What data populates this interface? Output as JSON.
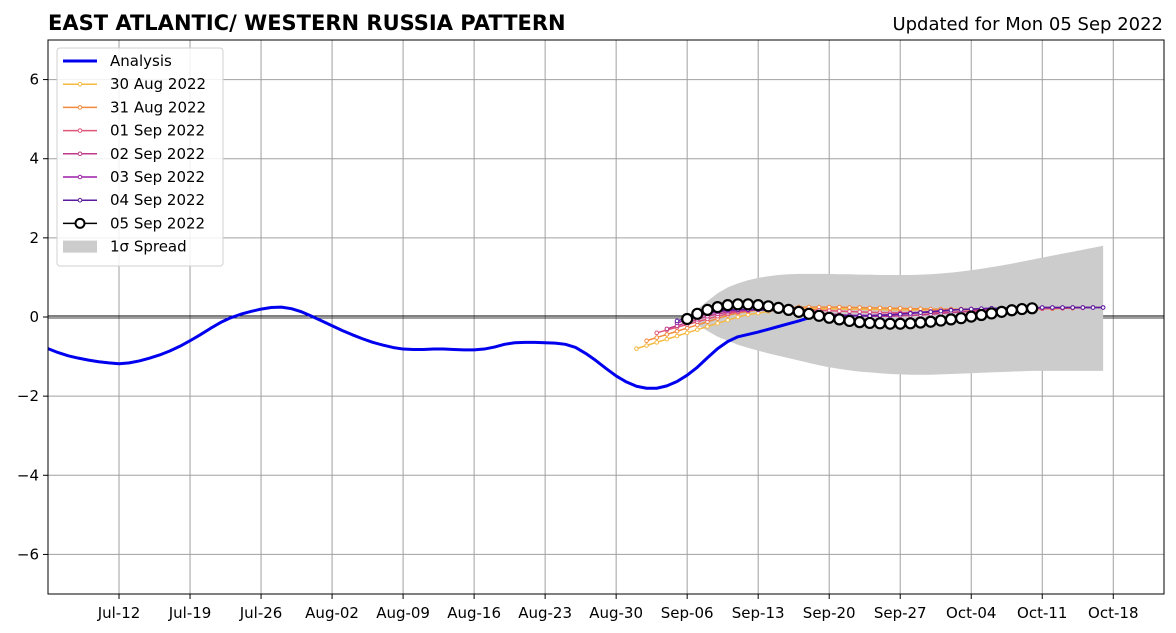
{
  "header": {
    "title": "EAST ATLANTIC/ WESTERN RUSSIA PATTERN",
    "updated": "Updated for Mon 05 Sep 2022"
  },
  "chart_data": {
    "type": "line",
    "title": "EAST ATLANTIC/ WESTERN RUSSIA PATTERN",
    "subtitle": "Updated for Mon 05 Sep 2022",
    "xlabel": "",
    "ylabel": "",
    "x_unit": "day of year 2022",
    "xlim": [
      "2022-07-05",
      "2022-10-23"
    ],
    "ylim": [
      -7,
      7
    ],
    "x_ticks": [
      {
        "date": "2022-07-12",
        "label": "Jul-12"
      },
      {
        "date": "2022-07-19",
        "label": "Jul-19"
      },
      {
        "date": "2022-07-26",
        "label": "Jul-26"
      },
      {
        "date": "2022-08-02",
        "label": "Aug-02"
      },
      {
        "date": "2022-08-09",
        "label": "Aug-09"
      },
      {
        "date": "2022-08-16",
        "label": "Aug-16"
      },
      {
        "date": "2022-08-23",
        "label": "Aug-23"
      },
      {
        "date": "2022-08-30",
        "label": "Aug-30"
      },
      {
        "date": "2022-09-06",
        "label": "Sep-06"
      },
      {
        "date": "2022-09-13",
        "label": "Sep-13"
      },
      {
        "date": "2022-09-20",
        "label": "Sep-20"
      },
      {
        "date": "2022-09-27",
        "label": "Sep-27"
      },
      {
        "date": "2022-10-04",
        "label": "Oct-04"
      },
      {
        "date": "2022-10-11",
        "label": "Oct-11"
      },
      {
        "date": "2022-10-18",
        "label": "Oct-18"
      }
    ],
    "y_ticks": [
      {
        "value": -6,
        "label": "−6"
      },
      {
        "value": -4,
        "label": "−4"
      },
      {
        "value": -2,
        "label": "−2"
      },
      {
        "value": 0,
        "label": "0"
      },
      {
        "value": 2,
        "label": "2"
      },
      {
        "value": 4,
        "label": "4"
      },
      {
        "value": 6,
        "label": "6"
      }
    ],
    "grid": true,
    "zero_line": true,
    "legend_position": "top-left",
    "analysis": {
      "name": "Analysis",
      "color": "#0000ee",
      "start_date": "2022-07-05",
      "step_days": 1,
      "values": [
        -0.8,
        -0.9,
        -0.98,
        -1.04,
        -1.09,
        -1.13,
        -1.16,
        -1.18,
        -1.16,
        -1.11,
        -1.04,
        -0.96,
        -0.86,
        -0.74,
        -0.6,
        -0.45,
        -0.29,
        -0.14,
        -0.02,
        0.07,
        0.14,
        0.2,
        0.24,
        0.25,
        0.21,
        0.13,
        0.02,
        -0.1,
        -0.22,
        -0.34,
        -0.45,
        -0.55,
        -0.64,
        -0.71,
        -0.77,
        -0.81,
        -0.82,
        -0.82,
        -0.81,
        -0.81,
        -0.82,
        -0.83,
        -0.83,
        -0.81,
        -0.76,
        -0.69,
        -0.65,
        -0.64,
        -0.64,
        -0.65,
        -0.66,
        -0.69,
        -0.77,
        -0.92,
        -1.1,
        -1.3,
        -1.49,
        -1.64,
        -1.75,
        -1.8,
        -1.8,
        -1.74,
        -1.63,
        -1.47,
        -1.27,
        -1.03,
        -0.8,
        -0.62,
        -0.5,
        -0.44,
        -0.38,
        -0.31,
        -0.24,
        -0.17,
        -0.1,
        -0.02,
        0.05
      ]
    },
    "spread": {
      "name": "1σ Spread",
      "color": "#cccccc",
      "start_date": "2022-09-06",
      "step_days": 1,
      "upper": [
        0.0,
        0.2,
        0.4,
        0.6,
        0.75,
        0.85,
        0.93,
        0.99,
        1.03,
        1.06,
        1.08,
        1.09,
        1.09,
        1.09,
        1.09,
        1.08,
        1.08,
        1.07,
        1.07,
        1.06,
        1.06,
        1.06,
        1.06,
        1.07,
        1.08,
        1.1,
        1.12,
        1.15,
        1.18,
        1.22,
        1.26,
        1.3,
        1.35,
        1.4,
        1.45,
        1.5,
        1.55,
        1.6,
        1.65,
        1.7,
        1.75,
        1.8
      ],
      "lower": [
        0.0,
        -0.2,
        -0.35,
        -0.5,
        -0.6,
        -0.7,
        -0.78,
        -0.85,
        -0.92,
        -0.98,
        -1.04,
        -1.1,
        -1.16,
        -1.22,
        -1.27,
        -1.31,
        -1.35,
        -1.38,
        -1.4,
        -1.42,
        -1.44,
        -1.45,
        -1.46,
        -1.46,
        -1.46,
        -1.45,
        -1.44,
        -1.43,
        -1.42,
        -1.41,
        -1.4,
        -1.39,
        -1.38,
        -1.37,
        -1.36,
        -1.36,
        -1.36,
        -1.36,
        -1.36,
        -1.36,
        -1.36,
        -1.36
      ]
    },
    "forecasts": [
      {
        "name": "30 Aug 2022",
        "color": "#f5b942",
        "start_date": "2022-09-01",
        "step_days": 1,
        "marker": "small",
        "values": [
          -0.8,
          -0.72,
          -0.64,
          -0.56,
          -0.48,
          -0.4,
          -0.32,
          -0.24,
          -0.16,
          -0.08,
          0.0,
          0.06,
          0.1,
          0.14,
          0.17,
          0.19,
          0.2,
          0.21,
          0.21,
          0.21,
          0.21,
          0.2,
          0.2,
          0.19,
          0.19,
          0.18,
          0.18,
          0.18,
          0.18,
          0.18,
          0.18,
          0.18,
          0.18,
          0.18,
          0.18,
          0.19,
          0.19,
          0.19,
          0.2,
          0.2,
          0.21,
          0.21,
          0.22
        ]
      },
      {
        "name": "31 Aug 2022",
        "color": "#f28a3c",
        "start_date": "2022-09-02",
        "step_days": 1,
        "marker": "small",
        "values": [
          -0.6,
          -0.52,
          -0.44,
          -0.36,
          -0.28,
          -0.2,
          -0.12,
          -0.04,
          0.04,
          0.1,
          0.14,
          0.18,
          0.21,
          0.23,
          0.24,
          0.25,
          0.25,
          0.25,
          0.25,
          0.25,
          0.24,
          0.24,
          0.23,
          0.23,
          0.22,
          0.22,
          0.21,
          0.21,
          0.2,
          0.2,
          0.2,
          0.2,
          0.2,
          0.2,
          0.2,
          0.2,
          0.2,
          0.2,
          0.21,
          0.21,
          0.21,
          0.22,
          0.22
        ]
      },
      {
        "name": "01 Sep 2022",
        "color": "#e0557a",
        "start_date": "2022-09-03",
        "step_days": 1,
        "marker": "small",
        "values": [
          -0.4,
          -0.33,
          -0.26,
          -0.19,
          -0.12,
          -0.05,
          0.02,
          0.08,
          0.13,
          0.16,
          0.18,
          0.19,
          0.2,
          0.2,
          0.19,
          0.18,
          0.17,
          0.16,
          0.15,
          0.14,
          0.13,
          0.12,
          0.11,
          0.11,
          0.11,
          0.11,
          0.11,
          0.11,
          0.12,
          0.12,
          0.13,
          0.14,
          0.15,
          0.16,
          0.17,
          0.18,
          0.19,
          0.2,
          0.21,
          0.22,
          0.22,
          0.23,
          0.23
        ]
      },
      {
        "name": "02 Sep 2022",
        "color": "#c13a8a",
        "start_date": "2022-09-04",
        "step_days": 1,
        "marker": "small",
        "values": [
          -0.3,
          -0.22,
          -0.14,
          -0.06,
          0.02,
          0.08,
          0.12,
          0.15,
          0.17,
          0.18,
          0.18,
          0.17,
          0.16,
          0.14,
          0.12,
          0.1,
          0.08,
          0.06,
          0.04,
          0.03,
          0.02,
          0.02,
          0.02,
          0.03,
          0.04,
          0.05,
          0.07,
          0.09,
          0.11,
          0.13,
          0.15,
          0.17,
          0.19,
          0.2,
          0.21,
          0.22,
          0.22,
          0.23,
          0.23,
          0.23,
          0.24,
          0.24,
          0.24
        ]
      },
      {
        "name": "03 Sep 2022",
        "color": "#9b1fa8",
        "start_date": "2022-09-05",
        "step_days": 1,
        "marker": "small",
        "values": [
          -0.15,
          -0.07,
          0.01,
          0.08,
          0.13,
          0.16,
          0.18,
          0.19,
          0.19,
          0.18,
          0.16,
          0.14,
          0.12,
          0.1,
          0.08,
          0.06,
          0.05,
          0.04,
          0.04,
          0.04,
          0.05,
          0.06,
          0.08,
          0.1,
          0.12,
          0.14,
          0.16,
          0.18,
          0.19,
          0.2,
          0.21,
          0.22,
          0.22,
          0.23,
          0.23,
          0.23,
          0.24,
          0.24,
          0.24,
          0.24,
          0.24,
          0.24,
          0.24
        ]
      },
      {
        "name": "04 Sep 2022",
        "color": "#5a1a9e",
        "start_date": "2022-09-05",
        "step_days": 1,
        "marker": "small",
        "values": [
          -0.1,
          -0.02,
          0.06,
          0.12,
          0.16,
          0.18,
          0.19,
          0.19,
          0.18,
          0.17,
          0.15,
          0.13,
          0.11,
          0.09,
          0.07,
          0.05,
          0.04,
          0.03,
          0.03,
          0.03,
          0.04,
          0.05,
          0.07,
          0.09,
          0.11,
          0.13,
          0.15,
          0.17,
          0.19,
          0.2,
          0.21,
          0.22,
          0.22,
          0.23,
          0.23,
          0.23,
          0.24,
          0.24,
          0.24,
          0.24,
          0.24,
          0.24,
          0.24
        ]
      },
      {
        "name": "05 Sep 2022",
        "color": "#000000",
        "start_date": "2022-09-06",
        "step_days": 1,
        "marker": "large-open",
        "values": [
          -0.05,
          0.08,
          0.18,
          0.25,
          0.3,
          0.32,
          0.32,
          0.3,
          0.27,
          0.23,
          0.18,
          0.13,
          0.08,
          0.03,
          -0.02,
          -0.06,
          -0.1,
          -0.13,
          -0.15,
          -0.16,
          -0.17,
          -0.17,
          -0.16,
          -0.14,
          -0.12,
          -0.09,
          -0.06,
          -0.03,
          0.01,
          0.05,
          0.09,
          0.13,
          0.17,
          0.2,
          0.22
        ]
      }
    ]
  }
}
